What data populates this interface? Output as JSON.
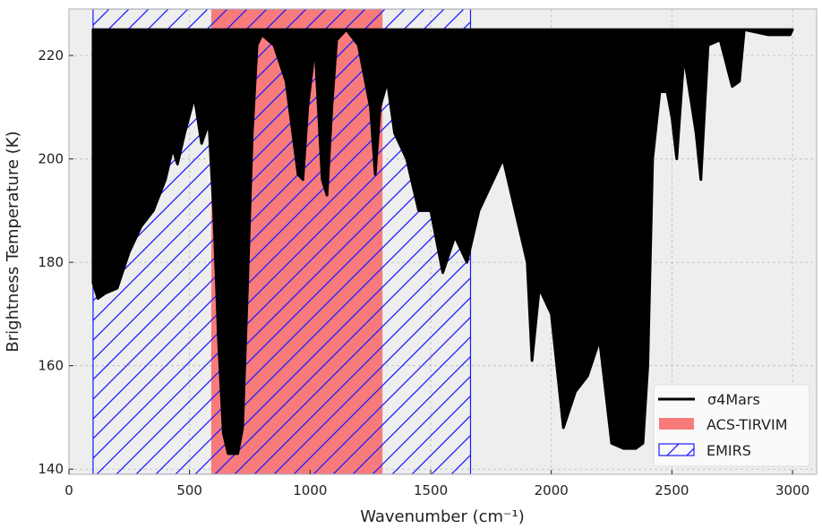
{
  "chart_data": {
    "type": "line",
    "xlabel": "Wavenumber (cm⁻¹)",
    "ylabel": "Brightness Temperature (K)",
    "xlim": [
      0,
      3100
    ],
    "ylim": [
      139,
      229
    ],
    "xticks": [
      0,
      500,
      1000,
      1500,
      2000,
      2500,
      3000
    ],
    "yticks": [
      140,
      160,
      180,
      200,
      220
    ],
    "grid": true,
    "legend": {
      "placement": "bottom-right",
      "entries": [
        "σ4Mars",
        "ACS-TIRVIM",
        "EMIRS"
      ]
    },
    "bands": [
      {
        "name": "ACS-TIRVIM",
        "x_start": 590,
        "x_end": 1300,
        "color": "#f77b7b",
        "style": "fill"
      },
      {
        "name": "EMIRS",
        "x_start": 100,
        "x_end": 1665,
        "color": "#1a1aff",
        "style": "hatch"
      }
    ],
    "series": [
      {
        "name": "σ4Mars",
        "color": "#000000",
        "upper_envelope": 225,
        "lower_envelope": {
          "x": [
            100,
            120,
            150,
            200,
            250,
            300,
            350,
            400,
            430,
            450,
            480,
            520,
            550,
            580,
            600,
            620,
            640,
            660,
            700,
            720,
            740,
            760,
            780,
            800,
            850,
            900,
            950,
            970,
            990,
            1020,
            1050,
            1070,
            1090,
            1110,
            1150,
            1200,
            1250,
            1270,
            1290,
            1320,
            1350,
            1400,
            1450,
            1500,
            1550,
            1600,
            1650,
            1700,
            1750,
            1800,
            1850,
            1900,
            1920,
            1950,
            2000,
            2050,
            2100,
            2150,
            2200,
            2250,
            2300,
            2350,
            2380,
            2400,
            2420,
            2450,
            2480,
            2500,
            2520,
            2550,
            2600,
            2620,
            2650,
            2700,
            2750,
            2780,
            2800,
            2900,
            2990,
            3000
          ],
          "y": [
            176,
            173,
            174,
            175,
            182,
            187,
            190,
            196,
            202,
            199,
            205,
            212,
            203,
            207,
            190,
            165,
            147,
            143,
            143,
            148,
            175,
            205,
            222,
            224,
            222,
            215,
            197,
            196,
            210,
            222,
            196,
            193,
            210,
            223,
            225,
            222,
            210,
            197,
            210,
            215,
            205,
            200,
            190,
            190,
            178,
            185,
            180,
            190,
            195,
            200,
            190,
            180,
            161,
            175,
            170,
            148,
            155,
            158,
            165,
            145,
            144,
            144,
            145,
            160,
            200,
            213,
            213,
            208,
            200,
            220,
            205,
            196,
            222,
            223,
            214,
            215,
            225,
            224,
            224,
            225
          ]
        }
      }
    ]
  }
}
